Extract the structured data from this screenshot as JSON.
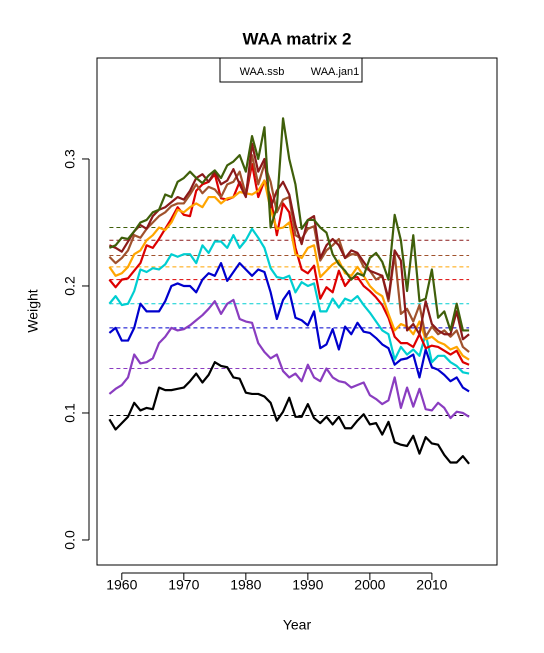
{
  "chart_data": {
    "type": "line",
    "title": "WAA matrix 2",
    "xlabel": "Year",
    "ylabel": "Weight",
    "legend": [
      "WAA.ssb",
      "WAA.jan1"
    ],
    "x": [
      1958,
      1959,
      1960,
      1961,
      1962,
      1963,
      1964,
      1965,
      1966,
      1967,
      1968,
      1969,
      1970,
      1971,
      1972,
      1973,
      1974,
      1975,
      1976,
      1977,
      1978,
      1979,
      1980,
      1981,
      1982,
      1983,
      1984,
      1985,
      1986,
      1987,
      1988,
      1989,
      1990,
      1991,
      1992,
      1993,
      1994,
      1995,
      1996,
      1997,
      1998,
      1999,
      2000,
      2001,
      2002,
      2003,
      2004,
      2005,
      2006,
      2007,
      2008,
      2009,
      2010,
      2011,
      2012,
      2013,
      2014,
      2015,
      2016
    ],
    "xlim": [
      1956,
      2020.5
    ],
    "xticks": [
      1960,
      1970,
      1980,
      1990,
      2000,
      2010
    ],
    "ylim": [
      -0.0197,
      0.3795
    ],
    "yticks": [
      {
        "value": 0,
        "label": "0.0"
      },
      0.1,
      0.2,
      0.3
    ],
    "series": [
      {
        "color": "#000000",
        "values": [
          0.095,
          0.087,
          0.092,
          0.097,
          0.108,
          0.102,
          0.104,
          0.103,
          0.12,
          0.118,
          0.118,
          0.119,
          0.12,
          0.125,
          0.131,
          0.124,
          0.13,
          0.14,
          0.137,
          0.136,
          0.128,
          0.127,
          0.116,
          0.115,
          0.115,
          0.113,
          0.108,
          0.094,
          0.101,
          0.112,
          0.097,
          0.097,
          0.107,
          0.096,
          0.092,
          0.097,
          0.091,
          0.097,
          0.088,
          0.088,
          0.094,
          0.099,
          0.091,
          0.092,
          0.083,
          0.093,
          0.077,
          0.075,
          0.074,
          0.082,
          0.068,
          0.081,
          0.076,
          0.075,
          0.067,
          0.061,
          0.061,
          0.066,
          0.06
        ]
      },
      {
        "color": "#8a3dc0",
        "values": [
          0.115,
          0.119,
          0.122,
          0.128,
          0.146,
          0.139,
          0.14,
          0.143,
          0.155,
          0.16,
          0.167,
          0.165,
          0.166,
          0.169,
          0.173,
          0.177,
          0.182,
          0.188,
          0.178,
          0.186,
          0.189,
          0.174,
          0.172,
          0.171,
          0.155,
          0.148,
          0.143,
          0.146,
          0.133,
          0.128,
          0.131,
          0.125,
          0.138,
          0.128,
          0.125,
          0.135,
          0.128,
          0.125,
          0.124,
          0.12,
          0.122,
          0.124,
          0.114,
          0.111,
          0.107,
          0.11,
          0.128,
          0.104,
          0.12,
          0.105,
          0.119,
          0.103,
          0.102,
          0.108,
          0.104,
          0.096,
          0.101,
          0.1,
          0.097
        ]
      },
      {
        "color": "#0000cd",
        "values": [
          0.163,
          0.167,
          0.157,
          0.157,
          0.167,
          0.186,
          0.18,
          0.18,
          0.18,
          0.188,
          0.2,
          0.202,
          0.2,
          0.2,
          0.195,
          0.205,
          0.21,
          0.208,
          0.218,
          0.204,
          0.211,
          0.218,
          0.213,
          0.208,
          0.213,
          0.211,
          0.195,
          0.174,
          0.189,
          0.196,
          0.175,
          0.173,
          0.169,
          0.18,
          0.151,
          0.154,
          0.166,
          0.15,
          0.168,
          0.162,
          0.171,
          0.164,
          0.163,
          0.159,
          0.154,
          0.151,
          0.138,
          0.142,
          0.143,
          0.146,
          0.128,
          0.15,
          0.136,
          0.134,
          0.13,
          0.125,
          0.128,
          0.12,
          0.117
        ]
      },
      {
        "color": "#00ced1",
        "values": [
          0.186,
          0.192,
          0.185,
          0.186,
          0.196,
          0.213,
          0.211,
          0.214,
          0.213,
          0.217,
          0.225,
          0.223,
          0.225,
          0.225,
          0.218,
          0.232,
          0.226,
          0.235,
          0.235,
          0.23,
          0.24,
          0.23,
          0.236,
          0.245,
          0.238,
          0.23,
          0.214,
          0.207,
          0.206,
          0.208,
          0.195,
          0.203,
          0.2,
          0.202,
          0.18,
          0.18,
          0.19,
          0.183,
          0.19,
          0.188,
          0.192,
          0.185,
          0.179,
          0.172,
          0.165,
          0.162,
          0.142,
          0.152,
          0.146,
          0.15,
          0.145,
          0.162,
          0.14,
          0.145,
          0.145,
          0.14,
          0.137,
          0.132,
          0.131
        ]
      },
      {
        "color": "#dd0000",
        "values": [
          0.205,
          0.199,
          0.205,
          0.206,
          0.212,
          0.218,
          0.232,
          0.23,
          0.237,
          0.245,
          0.253,
          0.262,
          0.256,
          0.255,
          0.275,
          0.28,
          0.282,
          0.288,
          0.269,
          0.268,
          0.27,
          0.282,
          0.271,
          0.296,
          0.27,
          0.283,
          0.27,
          0.24,
          0.265,
          0.258,
          0.23,
          0.213,
          0.21,
          0.216,
          0.19,
          0.199,
          0.195,
          0.212,
          0.2,
          0.206,
          0.207,
          0.2,
          0.196,
          0.191,
          0.185,
          0.175,
          0.16,
          0.155,
          0.155,
          0.152,
          0.162,
          0.151,
          0.153,
          0.152,
          0.149,
          0.146,
          0.149,
          0.14,
          0.138
        ]
      },
      {
        "color": "#ffa500",
        "values": [
          0.215,
          0.208,
          0.21,
          0.215,
          0.225,
          0.228,
          0.236,
          0.24,
          0.246,
          0.244,
          0.25,
          0.26,
          0.258,
          0.262,
          0.265,
          0.262,
          0.27,
          0.27,
          0.265,
          0.269,
          0.27,
          0.274,
          0.273,
          0.272,
          0.275,
          0.283,
          0.26,
          0.245,
          0.246,
          0.25,
          0.225,
          0.222,
          0.23,
          0.232,
          0.207,
          0.212,
          0.217,
          0.22,
          0.21,
          0.208,
          0.215,
          0.208,
          0.2,
          0.195,
          0.192,
          0.178,
          0.165,
          0.17,
          0.168,
          0.162,
          0.172,
          0.158,
          0.16,
          0.156,
          0.154,
          0.15,
          0.152,
          0.145,
          0.142
        ]
      },
      {
        "color": "#a0522d",
        "values": [
          0.223,
          0.218,
          0.222,
          0.228,
          0.24,
          0.238,
          0.245,
          0.25,
          0.255,
          0.258,
          0.263,
          0.265,
          0.265,
          0.272,
          0.28,
          0.273,
          0.278,
          0.276,
          0.27,
          0.28,
          0.282,
          0.29,
          0.272,
          0.303,
          0.28,
          0.296,
          0.282,
          0.258,
          0.268,
          0.27,
          0.24,
          0.237,
          0.245,
          0.247,
          0.22,
          0.228,
          0.232,
          0.237,
          0.222,
          0.225,
          0.225,
          0.215,
          0.212,
          0.205,
          0.208,
          0.188,
          0.225,
          0.178,
          0.182,
          0.172,
          0.185,
          0.16,
          0.168,
          0.162,
          0.165,
          0.16,
          0.165,
          0.152,
          0.148
        ]
      },
      {
        "color": "#8b1a1a",
        "values": [
          0.232,
          0.23,
          0.227,
          0.235,
          0.243,
          0.248,
          0.245,
          0.255,
          0.26,
          0.262,
          0.266,
          0.27,
          0.268,
          0.275,
          0.285,
          0.288,
          0.282,
          0.29,
          0.28,
          0.283,
          0.292,
          0.28,
          0.27,
          0.312,
          0.29,
          0.3,
          0.262,
          0.275,
          0.282,
          0.272,
          0.248,
          0.233,
          0.252,
          0.255,
          0.222,
          0.232,
          0.237,
          0.232,
          0.222,
          0.228,
          0.226,
          0.219,
          0.212,
          0.21,
          0.208,
          0.19,
          0.228,
          0.22,
          0.165,
          0.17,
          0.162,
          0.188,
          0.17,
          0.165,
          0.162,
          0.162,
          0.18,
          0.158,
          0.162
        ]
      },
      {
        "color": "#3f5f0a",
        "values": [
          0.23,
          0.232,
          0.238,
          0.237,
          0.243,
          0.25,
          0.252,
          0.258,
          0.26,
          0.272,
          0.27,
          0.282,
          0.285,
          0.29,
          0.285,
          0.281,
          0.287,
          0.291,
          0.285,
          0.295,
          0.298,
          0.303,
          0.29,
          0.318,
          0.3,
          0.325,
          0.246,
          0.262,
          0.332,
          0.3,
          0.28,
          0.245,
          0.252,
          0.252,
          0.246,
          0.242,
          0.225,
          0.217,
          0.212,
          0.205,
          0.21,
          0.208,
          0.222,
          0.226,
          0.219,
          0.205,
          0.256,
          0.236,
          0.196,
          0.24,
          0.188,
          0.19,
          0.213,
          0.175,
          0.18,
          0.165,
          0.186,
          0.165,
          0.165
        ]
      }
    ],
    "reference_lines": [
      {
        "color": "#000000",
        "value": 0.098
      },
      {
        "color": "#8a3dc0",
        "value": 0.135
      },
      {
        "color": "#0000cd",
        "value": 0.167
      },
      {
        "color": "#00ced1",
        "value": 0.186
      },
      {
        "color": "#dd0000",
        "value": 0.205
      },
      {
        "color": "#ffa500",
        "value": 0.215
      },
      {
        "color": "#a0522d",
        "value": 0.224
      },
      {
        "color": "#8b1a1a",
        "value": 0.236
      },
      {
        "color": "#3f5f0a",
        "value": 0.246
      }
    ]
  }
}
